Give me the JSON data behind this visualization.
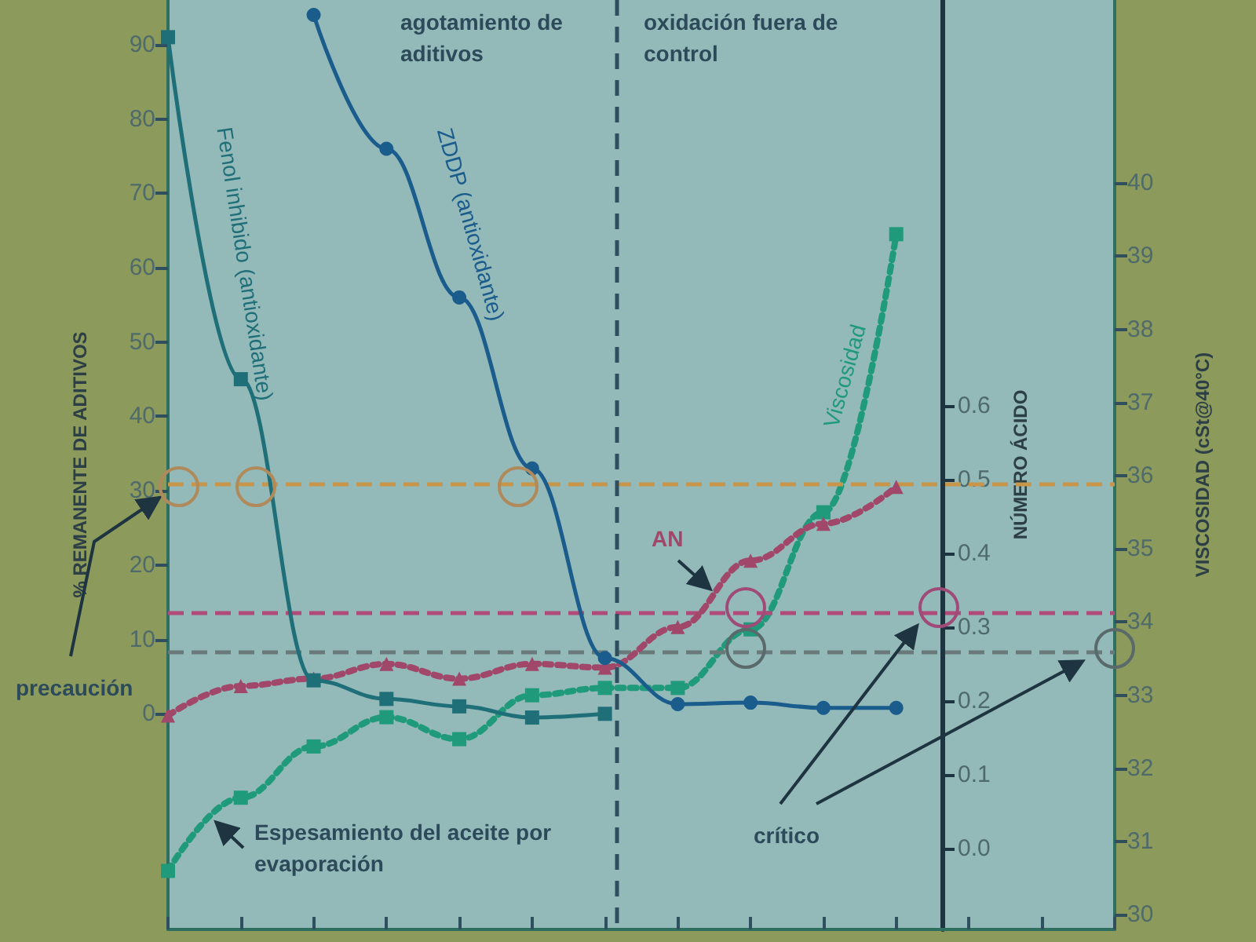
{
  "chart_data": {
    "type": "line",
    "ylabel": "% REMANENTE DE ADITIVOS",
    "y2label": "VISCOSIDAD (cSt@40°C)",
    "y3label": "NÚMERO ÁCIDO",
    "categories": [
      null,
      null,
      null,
      null,
      null,
      null,
      null,
      null,
      null,
      null,
      null,
      null,
      null,
      null
    ],
    "ylim": [
      -29,
      96
    ],
    "yticks": [
      0,
      10,
      20,
      30,
      40,
      50,
      60,
      70,
      80,
      90
    ],
    "y2lim": [
      29.8,
      42.5
    ],
    "y2ticks": [
      30,
      31,
      32,
      33,
      34,
      35,
      36,
      37,
      38,
      39,
      40
    ],
    "y3lim": [
      -0.11,
      1.15
    ],
    "y3ticks": [
      {
        "value": 0,
        "label": "0.0"
      },
      0.1,
      0.2,
      0.3,
      0.4,
      0.5,
      0.6
    ],
    "series": [
      {
        "name": "Fenol inhibido (antioxidante)",
        "color": "#1f6f78",
        "marker": "square",
        "line_style": "solid",
        "values": [
          91,
          45,
          4.5,
          2,
          1,
          -0.5,
          0,
          null,
          null,
          null,
          null,
          null,
          null,
          null
        ]
      },
      {
        "name": "ZDDP (antioxidante)",
        "color": "#1a5c8c",
        "marker": "circle",
        "line_style": "solid",
        "values": [
          null,
          null,
          94,
          76,
          56,
          33,
          7.5,
          1.3,
          1.5,
          0.8,
          0.8,
          null,
          null,
          null
        ]
      },
      {
        "name": "AN",
        "color": "#a0476a",
        "marker": "triangle",
        "line_style": "dotted",
        "axis": "y3",
        "values": [
          0.18,
          0.22,
          0.23,
          0.25,
          0.23,
          0.25,
          0.245,
          0.3,
          0.39,
          0.44,
          0.49,
          null,
          null,
          null
        ]
      },
      {
        "name": "Viscosidad",
        "color": "#1f9a7a",
        "marker": "square",
        "line_style": "dotted",
        "axis": "y2",
        "values": [
          30.6,
          31.6,
          32.3,
          32.7,
          32.4,
          33.0,
          33.1,
          33.1,
          33.9,
          35.5,
          39.3,
          null,
          null,
          null
        ]
      }
    ],
    "ref_lines": [
      {
        "axis": "y",
        "value": 31,
        "color": "#c8964b",
        "line_style": "dashed"
      },
      {
        "axis": "y3",
        "value": 0.32,
        "color": "#b04a78",
        "line_style": "dashed"
      },
      {
        "axis": "y2",
        "value": 33.6,
        "color": "#6a7a7a",
        "line_style": "dashed"
      }
    ],
    "annotations": [
      "agotamiento de aditivos",
      "oxidación fuera de control",
      "precaución",
      "Espesamiento del aceite por evaporación",
      "crítico"
    ]
  }
}
